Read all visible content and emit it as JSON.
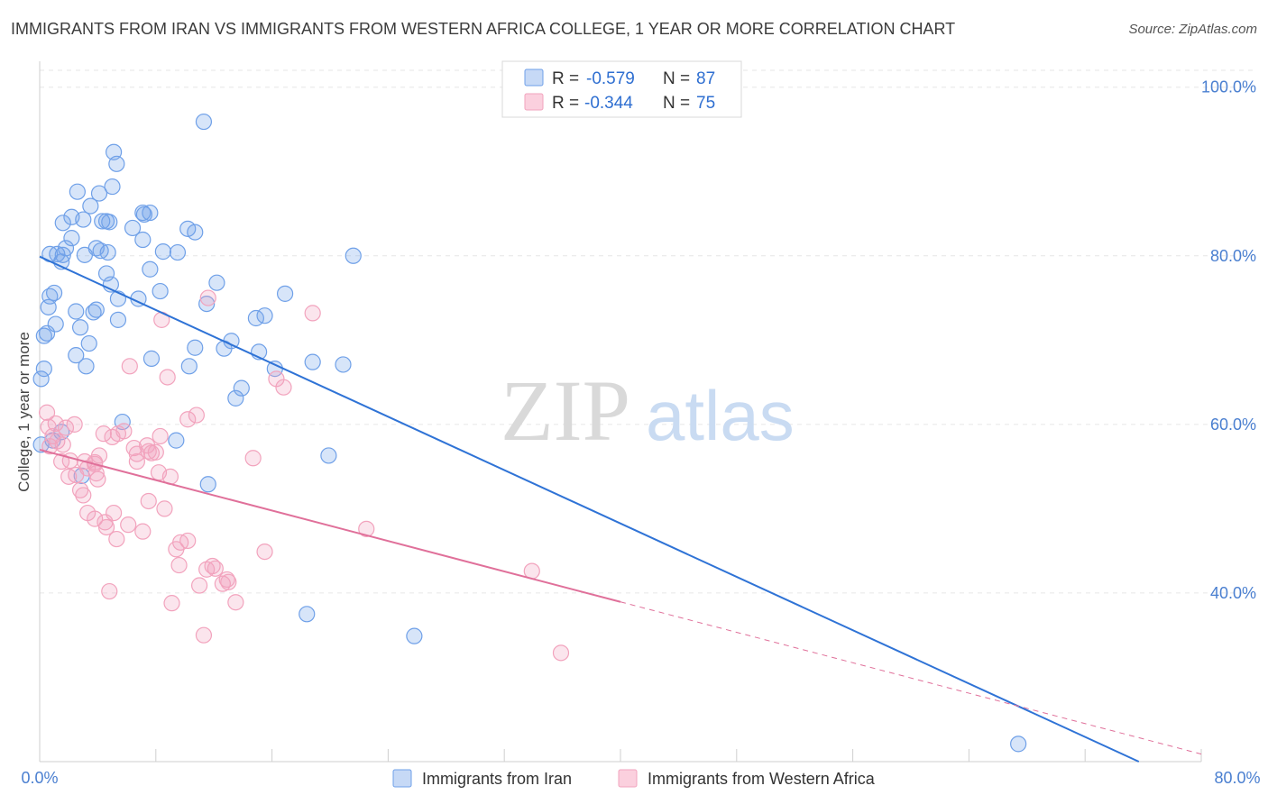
{
  "title": "IMMIGRANTS FROM IRAN VS IMMIGRANTS FROM WESTERN AFRICA COLLEGE, 1 YEAR OR MORE CORRELATION CHART",
  "source": "Source: ZipAtlas.com",
  "watermark": {
    "zip": "ZIP",
    "atlas": "atlas"
  },
  "legend": {
    "r_label": "R =",
    "n_label": "N =",
    "series": [
      {
        "r": "-0.579",
        "n": "87"
      },
      {
        "r": "-0.344",
        "n": "75"
      }
    ]
  },
  "chart_data": {
    "type": "scatter",
    "title": "IMMIGRANTS FROM IRAN VS IMMIGRANTS FROM WESTERN AFRICA COLLEGE, 1 YEAR OR MORE CORRELATION CHART",
    "xlabel": "",
    "ylabel": "College, 1 year or more",
    "xlim": [
      0,
      80
    ],
    "ylim": [
      20,
      102
    ],
    "x_tick_labels": [
      "0.0%",
      "80.0%"
    ],
    "y_ticks": [
      40,
      60,
      80,
      100
    ],
    "y_tick_labels": [
      "40.0%",
      "60.0%",
      "80.0%",
      "100.0%"
    ],
    "grid": true,
    "colors": {
      "iran": "#6fa0e8",
      "iran_line": "#2f73d6",
      "wafrica": "#f2a3bd",
      "wafrica_line": "#e0709a"
    },
    "series": [
      {
        "name": "Immigrants from Iran",
        "r": -0.579,
        "n": 87,
        "trend": {
          "x0": 0,
          "y0": 79.9,
          "x1": 75.7,
          "y1": 20
        },
        "points": [
          [
            11.3,
            95.9
          ],
          [
            5.1,
            92.3
          ],
          [
            5.3,
            90.9
          ],
          [
            5.0,
            88.2
          ],
          [
            2.6,
            87.6
          ],
          [
            4.1,
            87.4
          ],
          [
            3.5,
            85.9
          ],
          [
            7.1,
            85.1
          ],
          [
            7.6,
            85.1
          ],
          [
            7.2,
            84.9
          ],
          [
            2.2,
            84.6
          ],
          [
            4.6,
            84.1
          ],
          [
            4.8,
            84.0
          ],
          [
            1.6,
            83.9
          ],
          [
            4.3,
            84.1
          ],
          [
            3.0,
            84.3
          ],
          [
            6.4,
            83.3
          ],
          [
            10.2,
            83.2
          ],
          [
            10.7,
            82.8
          ],
          [
            2.2,
            82.1
          ],
          [
            7.1,
            81.9
          ],
          [
            1.8,
            80.9
          ],
          [
            3.9,
            80.9
          ],
          [
            4.2,
            80.6
          ],
          [
            8.5,
            80.5
          ],
          [
            9.5,
            80.4
          ],
          [
            4.7,
            80.4
          ],
          [
            1.2,
            80.2
          ],
          [
            0.7,
            80.2
          ],
          [
            3.1,
            80.1
          ],
          [
            21.6,
            80.0
          ],
          [
            1.6,
            80.1
          ],
          [
            1.5,
            79.3
          ],
          [
            7.6,
            78.4
          ],
          [
            4.6,
            77.9
          ],
          [
            12.2,
            76.8
          ],
          [
            4.9,
            76.6
          ],
          [
            8.3,
            75.8
          ],
          [
            16.9,
            75.5
          ],
          [
            1.0,
            75.6
          ],
          [
            0.7,
            75.2
          ],
          [
            6.8,
            74.9
          ],
          [
            5.4,
            74.9
          ],
          [
            11.5,
            74.3
          ],
          [
            0.6,
            73.9
          ],
          [
            3.9,
            73.6
          ],
          [
            2.5,
            73.4
          ],
          [
            3.7,
            73.3
          ],
          [
            15.5,
            72.9
          ],
          [
            14.9,
            72.6
          ],
          [
            5.4,
            72.4
          ],
          [
            1.1,
            71.9
          ],
          [
            2.8,
            71.5
          ],
          [
            0.5,
            70.8
          ],
          [
            0.3,
            70.5
          ],
          [
            13.2,
            69.9
          ],
          [
            3.4,
            69.6
          ],
          [
            10.7,
            69.1
          ],
          [
            12.7,
            69.0
          ],
          [
            15.1,
            68.6
          ],
          [
            2.5,
            68.2
          ],
          [
            7.7,
            67.8
          ],
          [
            18.8,
            67.4
          ],
          [
            20.9,
            67.1
          ],
          [
            3.2,
            66.9
          ],
          [
            10.3,
            66.9
          ],
          [
            16.2,
            66.6
          ],
          [
            0.3,
            66.6
          ],
          [
            0.1,
            65.4
          ],
          [
            13.9,
            64.3
          ],
          [
            13.5,
            63.1
          ],
          [
            5.7,
            60.3
          ],
          [
            1.5,
            59.1
          ],
          [
            0.9,
            58.1
          ],
          [
            9.4,
            58.1
          ],
          [
            0.1,
            57.6
          ],
          [
            19.9,
            56.3
          ],
          [
            2.9,
            53.9
          ],
          [
            11.6,
            52.9
          ],
          [
            18.4,
            37.5
          ],
          [
            25.8,
            34.9
          ],
          [
            67.4,
            22.1
          ]
        ]
      },
      {
        "name": "Immigrants from Western Africa",
        "r": -0.344,
        "n": 75,
        "trend": {
          "x0": 0,
          "y0": 57.0,
          "x1": 80,
          "y1": 20.9,
          "solid_until_x": 40
        },
        "points": [
          [
            11.6,
            75.0
          ],
          [
            18.8,
            73.2
          ],
          [
            8.4,
            72.4
          ],
          [
            6.2,
            66.9
          ],
          [
            8.8,
            65.6
          ],
          [
            16.3,
            65.4
          ],
          [
            16.8,
            64.4
          ],
          [
            10.8,
            61.1
          ],
          [
            0.5,
            61.4
          ],
          [
            10.2,
            60.6
          ],
          [
            1.1,
            60.1
          ],
          [
            2.4,
            60.0
          ],
          [
            0.6,
            59.7
          ],
          [
            1.8,
            59.6
          ],
          [
            5.8,
            59.2
          ],
          [
            5.4,
            58.9
          ],
          [
            4.4,
            58.9
          ],
          [
            0.9,
            58.6
          ],
          [
            8.3,
            58.6
          ],
          [
            5.0,
            58.5
          ],
          [
            1.2,
            58.0
          ],
          [
            0.7,
            57.4
          ],
          [
            1.6,
            57.6
          ],
          [
            7.4,
            57.5
          ],
          [
            6.5,
            57.2
          ],
          [
            7.5,
            56.8
          ],
          [
            7.7,
            56.6
          ],
          [
            6.7,
            56.5
          ],
          [
            8.0,
            56.7
          ],
          [
            4.1,
            56.3
          ],
          [
            14.7,
            56.0
          ],
          [
            2.1,
            55.7
          ],
          [
            3.1,
            55.6
          ],
          [
            6.7,
            55.6
          ],
          [
            1.5,
            55.6
          ],
          [
            3.8,
            55.5
          ],
          [
            3.8,
            55.3
          ],
          [
            3.3,
            54.8
          ],
          [
            3.9,
            54.2
          ],
          [
            8.2,
            54.3
          ],
          [
            2.5,
            54.0
          ],
          [
            9.0,
            53.8
          ],
          [
            2.0,
            53.8
          ],
          [
            4.0,
            53.5
          ],
          [
            2.8,
            52.2
          ],
          [
            3.0,
            51.6
          ],
          [
            7.5,
            50.9
          ],
          [
            8.6,
            50.0
          ],
          [
            3.3,
            49.5
          ],
          [
            5.1,
            49.5
          ],
          [
            3.8,
            48.8
          ],
          [
            4.5,
            48.4
          ],
          [
            6.1,
            48.1
          ],
          [
            4.6,
            47.8
          ],
          [
            22.5,
            47.6
          ],
          [
            7.1,
            47.3
          ],
          [
            5.3,
            46.4
          ],
          [
            9.7,
            46.0
          ],
          [
            10.2,
            46.2
          ],
          [
            9.4,
            45.2
          ],
          [
            15.5,
            44.9
          ],
          [
            9.6,
            43.3
          ],
          [
            11.5,
            42.8
          ],
          [
            11.9,
            43.2
          ],
          [
            12.1,
            42.9
          ],
          [
            33.9,
            42.6
          ],
          [
            12.6,
            41.1
          ],
          [
            12.9,
            41.6
          ],
          [
            13.0,
            41.3
          ],
          [
            11.0,
            40.9
          ],
          [
            4.8,
            40.2
          ],
          [
            9.1,
            38.8
          ],
          [
            13.5,
            38.9
          ],
          [
            11.3,
            35.0
          ],
          [
            35.9,
            32.9
          ]
        ]
      }
    ]
  },
  "bottom_legend": [
    "Immigrants from Iran",
    "Immigrants from Western Africa"
  ]
}
